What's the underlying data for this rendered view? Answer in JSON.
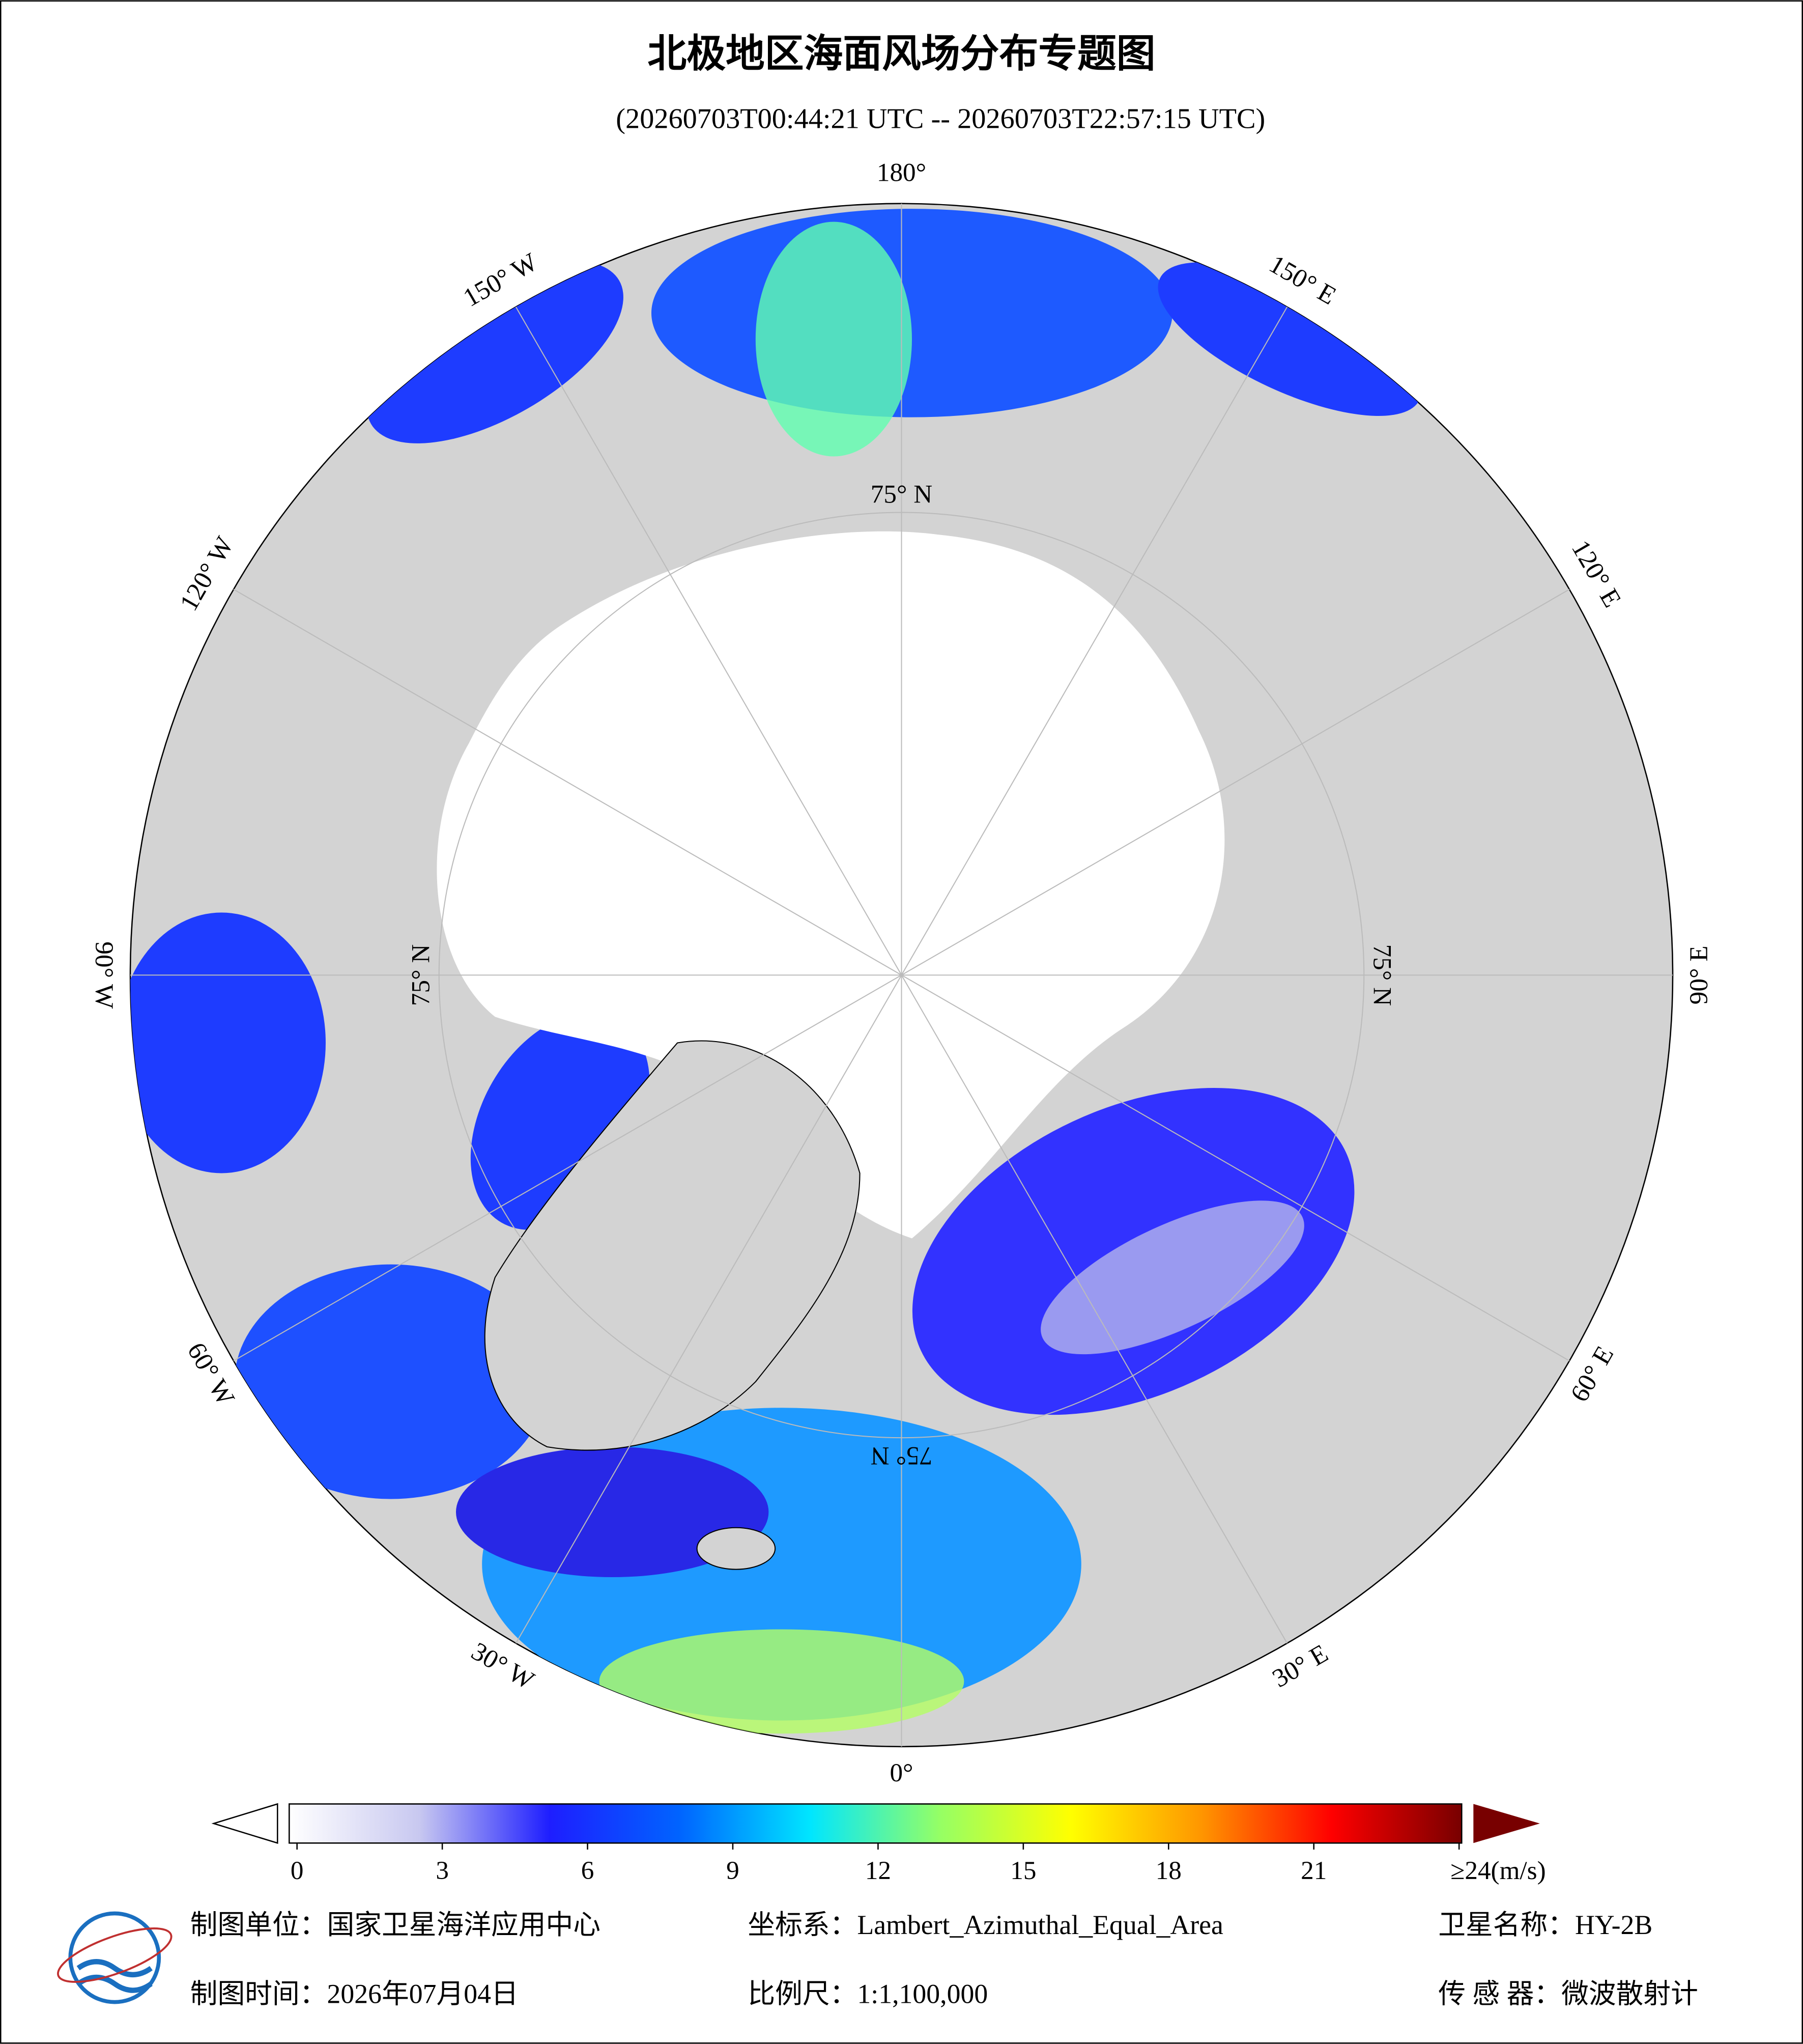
{
  "title": "北极地区海面风场分布专题图",
  "subtitle": "(20260703T00:44:21 UTC -- 20260703T22:57:15 UTC)",
  "map": {
    "lon_labels": [
      "0°",
      "30° E",
      "60° E",
      "90° E",
      "120° E",
      "150° E",
      "180°",
      "150° W",
      "120° W",
      "90° W",
      "60° W",
      "30° W"
    ],
    "lat_labels": [
      "75° N",
      "75° N",
      "75° N",
      "75° N"
    ]
  },
  "colorbar": {
    "lim": [
      0,
      24
    ],
    "colors": [
      "#ffffff",
      "#c8c8f0",
      "#1e1eff",
      "#0064ff",
      "#00e6ff",
      "#96ff64",
      "#ffff00",
      "#ff9600",
      "#ff0000",
      "#780000"
    ],
    "ticks": [
      0,
      3,
      6,
      9,
      12,
      15,
      18,
      21,
      {
        "value": 24,
        "label": "≥24(m/s)"
      }
    ]
  },
  "footer": {
    "unit": "制图单位：国家卫星海洋应用中心",
    "projection": "坐标系：Lambert_Azimuthal_Equal_Area",
    "satellite": "卫星名称：HY-2B",
    "date": "制图时间：2026年07月04日",
    "scale": "比例尺：1:1,100,000",
    "sensor": "传 感 器：微波散射计"
  }
}
